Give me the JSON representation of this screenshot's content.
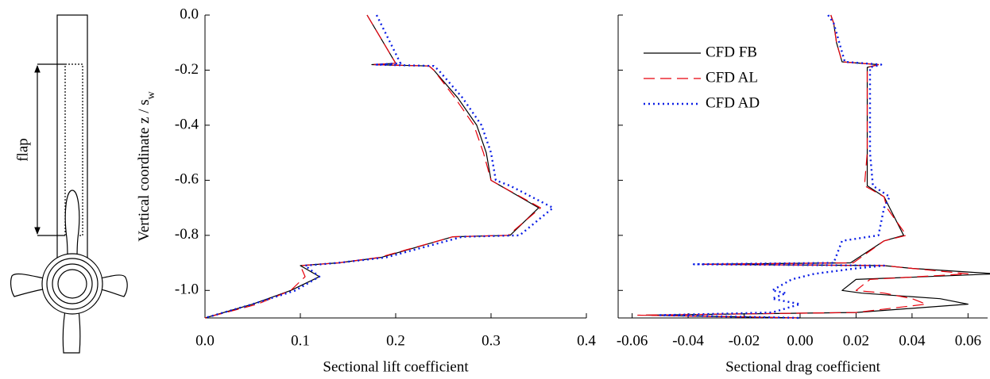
{
  "diagram_label": "flap",
  "chart_data": [
    {
      "type": "line",
      "xlabel": "Sectional lift coefficient",
      "ylabel": "Vertical coordinate z / s",
      "ylabel_sub": "w",
      "xlim": [
        0,
        0.4
      ],
      "ylim": [
        -1.1,
        0
      ],
      "xticks": [
        {
          "value": 0,
          "label": "0.0"
        },
        0.1,
        0.2,
        0.3,
        0.4
      ],
      "yticks": [
        {
          "value": 0,
          "label": "0.0"
        },
        -0.2,
        -0.4,
        -0.6,
        -0.8,
        {
          "value": -1,
          "label": "-1.0"
        }
      ],
      "y": [
        0.0,
        -0.175,
        -0.18,
        -0.185,
        -0.2,
        -0.3,
        -0.4,
        -0.5,
        -0.6,
        -0.62,
        -0.7,
        -0.8,
        -0.805,
        -0.88,
        -0.9,
        -0.91,
        -0.95,
        -1.0,
        -1.05,
        -1.1
      ],
      "series": [
        {
          "name": "CFD FB",
          "color": "#000000",
          "style": "solid",
          "values": [
            0.17,
            0.2,
            0.175,
            0.235,
            0.24,
            0.265,
            0.285,
            0.295,
            0.3,
            0.31,
            0.35,
            0.32,
            0.26,
            0.185,
            0.14,
            0.1,
            0.12,
            0.09,
            0.05,
            0.0
          ]
        },
        {
          "name": "CFD AL",
          "color": "#e8000b",
          "style": "dashed",
          "values": [
            0.17,
            0.2,
            0.175,
            0.235,
            0.24,
            0.262,
            0.282,
            0.292,
            0.3,
            0.31,
            0.352,
            0.318,
            0.26,
            0.183,
            0.14,
            0.1,
            0.105,
            0.09,
            0.055,
            0.0
          ]
        },
        {
          "name": "CFD AD",
          "color": "#0a1ee6",
          "style": "dotted",
          "values": [
            0.18,
            0.205,
            0.18,
            0.24,
            0.245,
            0.27,
            0.29,
            0.3,
            0.305,
            0.32,
            0.365,
            0.33,
            0.27,
            0.19,
            0.14,
            0.105,
            0.12,
            0.095,
            0.05,
            0.0
          ]
        }
      ]
    },
    {
      "type": "line",
      "xlabel": "Sectional drag coefficient",
      "xlim": [
        -0.065,
        0.067
      ],
      "ylim": [
        -1.1,
        0
      ],
      "xticks": [
        -0.06,
        -0.04,
        -0.02,
        {
          "value": 0,
          "label": "0.00"
        },
        0.02,
        0.04,
        0.06
      ],
      "yticks": [
        0,
        -0.2,
        -0.4,
        -0.6,
        -0.8,
        -1
      ],
      "ytick_labels": false,
      "legend": "upper left",
      "y": [
        0.0,
        -0.03,
        -0.1,
        -0.17,
        -0.18,
        -0.19,
        -0.3,
        -0.5,
        -0.62,
        -0.66,
        -0.7,
        -0.8,
        -0.82,
        -0.9,
        -0.905,
        -0.91,
        -0.92,
        -0.94,
        -0.96,
        -1.0,
        -1.01,
        -1.03,
        -1.05,
        -1.08,
        -1.09,
        -1.1
      ],
      "series": [
        {
          "name": "CFD FB",
          "color": "#000000",
          "style": "solid",
          "values": [
            0.011,
            0.012,
            0.013,
            0.015,
            0.028,
            0.024,
            0.024,
            0.024,
            0.024,
            0.03,
            0.032,
            0.037,
            0.03,
            0.018,
            -0.035,
            0.03,
            0.04,
            0.07,
            0.02,
            0.015,
            0.022,
            0.05,
            0.06,
            0.02,
            -0.055,
            0.0
          ]
        },
        {
          "name": "CFD AL",
          "color": "#e8000b",
          "style": "dashed",
          "values": [
            0.011,
            0.012,
            0.013,
            0.015,
            0.028,
            0.024,
            0.024,
            0.024,
            0.023,
            0.03,
            0.031,
            0.038,
            0.03,
            0.019,
            -0.035,
            0.03,
            0.04,
            0.06,
            0.025,
            0.02,
            0.03,
            0.04,
            0.045,
            0.02,
            -0.058,
            0.0
          ]
        },
        {
          "name": "CFD AD",
          "color": "#0a1ee6",
          "style": "dotted",
          "values": [
            0.01,
            0.012,
            0.014,
            0.016,
            0.029,
            0.025,
            0.025,
            0.025,
            0.026,
            0.032,
            0.03,
            0.028,
            0.015,
            0.012,
            -0.038,
            0.03,
            0.02,
            0.005,
            -0.003,
            -0.01,
            -0.005,
            -0.01,
            0.0,
            -0.01,
            -0.05,
            0.0
          ]
        }
      ]
    }
  ]
}
